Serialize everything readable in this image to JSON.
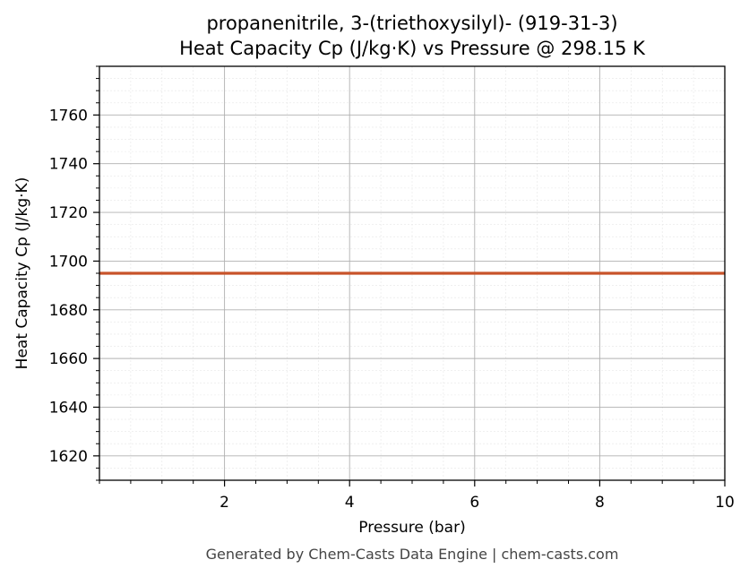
{
  "chart_data": {
    "type": "line",
    "title": "propanenitrile, 3-(triethoxysilyl)- (919-31-3)",
    "subtitle": "Heat Capacity Cp (J/kg·K) vs Pressure @ 298.15 K",
    "xlabel": "Pressure (bar)",
    "ylabel": "Heat Capacity Cp (J/kg·K)",
    "xlim": [
      0.0,
      10.0
    ],
    "ylim": [
      1610,
      1780
    ],
    "x_ticks": [
      2,
      4,
      6,
      8,
      10
    ],
    "y_ticks": [
      1620,
      1640,
      1660,
      1680,
      1700,
      1720,
      1740,
      1760
    ],
    "x_minor_step": 0.5,
    "y_minor_step": 5,
    "grid": true,
    "legend": "none",
    "series": [
      {
        "color": "#c8532a",
        "x": [
          0.0,
          10.0
        ],
        "y": [
          1695,
          1695
        ]
      }
    ]
  },
  "footer": "Generated by Chem-Casts Data Engine | chem-casts.com"
}
